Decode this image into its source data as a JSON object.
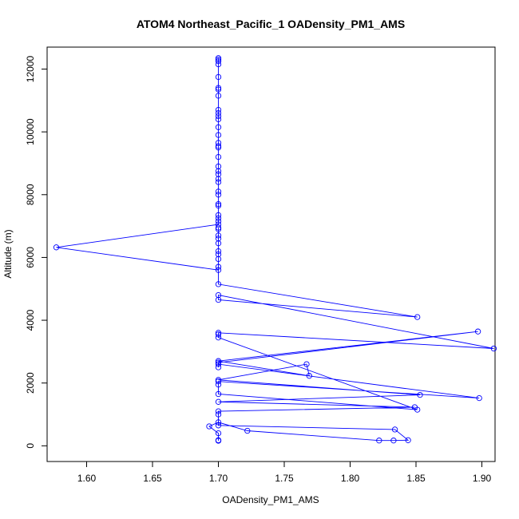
{
  "chart_data": {
    "type": "line",
    "title": "ATOM4 Northeast_Pacific_1 OADensity_PM1_AMS",
    "xlabel": "OADensity_PM1_AMS",
    "ylabel": "Altitude (m)",
    "xlim": [
      1.57,
      1.91
    ],
    "ylim": [
      -500,
      12700
    ],
    "xticks": [
      "1.60",
      "1.65",
      "1.70",
      "1.75",
      "1.80",
      "1.85",
      "1.90"
    ],
    "xtick_values": [
      1.6,
      1.65,
      1.7,
      1.75,
      1.8,
      1.85,
      1.9
    ],
    "yticks": [
      "0",
      "2000",
      "4000",
      "6000",
      "8000",
      "10000",
      "12000"
    ],
    "ytick_values": [
      0,
      2000,
      4000,
      6000,
      8000,
      10000,
      12000
    ],
    "grid": false,
    "legend": "none",
    "series": [
      {
        "color": "#0000ff",
        "marker": "open-circle",
        "points": [
          [
            1.7,
            12350
          ],
          [
            1.7,
            12300
          ],
          [
            1.7,
            12250
          ],
          [
            1.7,
            12150
          ],
          [
            1.7,
            11750
          ],
          [
            1.7,
            11400
          ],
          [
            1.7,
            11350
          ],
          [
            1.7,
            11150
          ],
          [
            1.7,
            10700
          ],
          [
            1.7,
            10600
          ],
          [
            1.7,
            10500
          ],
          [
            1.7,
            10400
          ],
          [
            1.7,
            10150
          ],
          [
            1.7,
            9900
          ],
          [
            1.7,
            9650
          ],
          [
            1.7,
            9550
          ],
          [
            1.7,
            9500
          ],
          [
            1.7,
            9200
          ],
          [
            1.7,
            8900
          ],
          [
            1.7,
            8750
          ],
          [
            1.7,
            8650
          ],
          [
            1.7,
            8500
          ],
          [
            1.7,
            8400
          ],
          [
            1.7,
            8100
          ],
          [
            1.7,
            8000
          ],
          [
            1.7,
            7700
          ],
          [
            1.7,
            7650
          ],
          [
            1.7,
            7350
          ],
          [
            1.7,
            7250
          ],
          [
            1.7,
            7150
          ],
          [
            1.7,
            7050
          ],
          [
            1.577,
            6320
          ],
          [
            1.7,
            5600
          ],
          [
            1.7,
            5700
          ],
          [
            1.7,
            5950
          ],
          [
            1.7,
            6100
          ],
          [
            1.7,
            6200
          ],
          [
            1.7,
            6450
          ],
          [
            1.7,
            6600
          ],
          [
            1.7,
            6700
          ],
          [
            1.7,
            6900
          ],
          [
            1.7,
            6950
          ],
          [
            1.7,
            5150
          ],
          [
            1.851,
            4100
          ],
          [
            1.7,
            4650
          ],
          [
            1.7,
            4800
          ],
          [
            1.909,
            3100
          ],
          [
            1.7,
            3600
          ],
          [
            1.7,
            3550
          ],
          [
            1.7,
            3450
          ],
          [
            1.851,
            1150
          ],
          [
            1.7,
            1650
          ],
          [
            1.7,
            1950
          ],
          [
            1.7,
            2050
          ],
          [
            1.898,
            1520
          ],
          [
            1.7,
            2600
          ],
          [
            1.7,
            2500
          ],
          [
            1.7,
            2650
          ],
          [
            1.897,
            3640
          ],
          [
            1.7,
            2700
          ],
          [
            1.769,
            2230
          ],
          [
            1.767,
            2600
          ],
          [
            1.7,
            2100
          ],
          [
            1.853,
            1620
          ],
          [
            1.7,
            1400
          ],
          [
            1.849,
            1230
          ],
          [
            1.7,
            1100
          ],
          [
            1.7,
            1000
          ],
          [
            1.7,
            650
          ],
          [
            1.834,
            520
          ],
          [
            1.844,
            180
          ],
          [
            1.833,
            170
          ],
          [
            1.822,
            170
          ],
          [
            1.722,
            480
          ],
          [
            1.7,
            750
          ],
          [
            1.693,
            620
          ],
          [
            1.7,
            400
          ],
          [
            1.7,
            180
          ],
          [
            1.7,
            160
          ]
        ]
      }
    ]
  }
}
